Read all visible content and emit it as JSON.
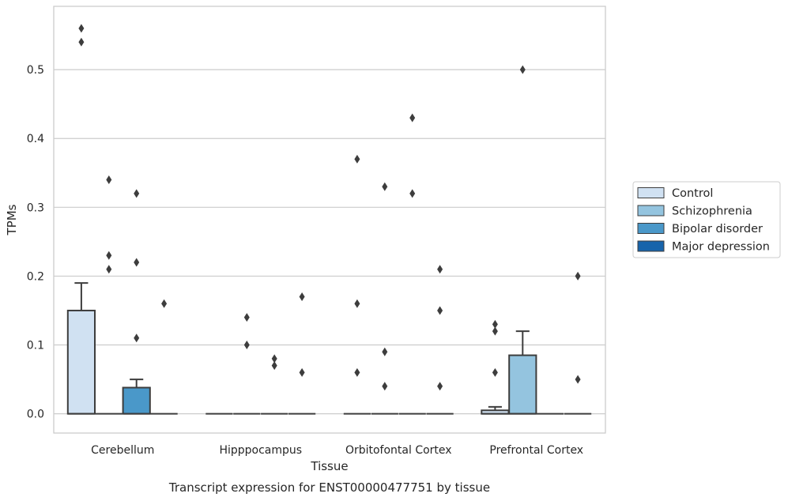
{
  "chart_data": {
    "type": "box",
    "title": "",
    "caption": "Transcript expression for ENST00000477751 by tissue",
    "xlabel": "Tissue",
    "ylabel": "TPMs",
    "ylim": [
      -0.028,
      0.592
    ],
    "yticks": [
      0.0,
      0.1,
      0.2,
      0.3,
      0.4,
      0.5
    ],
    "ytick_labels": [
      "0.0",
      "0.1",
      "0.2",
      "0.3",
      "0.4",
      "0.5"
    ],
    "grid": "horizontal",
    "legend_position": "right",
    "categories": [
      "Cerebellum",
      "Hipppocampus",
      "Orbitofontal Cortex",
      "Prefrontal Cortex"
    ],
    "series": [
      {
        "name": "Control",
        "color": "#d0e1f2",
        "boxes": [
          {
            "q1": 0.0,
            "median": 0.0,
            "q3": 0.15,
            "whisker_low": 0.0,
            "whisker_high": 0.19,
            "outliers": [
              0.54,
              0.56
            ]
          },
          {
            "q1": 0.0,
            "median": 0.0,
            "q3": 0.0,
            "whisker_low": 0.0,
            "whisker_high": 0.0,
            "outliers": []
          },
          {
            "q1": 0.0,
            "median": 0.0,
            "q3": 0.0,
            "whisker_low": 0.0,
            "whisker_high": 0.0,
            "outliers": [
              0.06,
              0.16,
              0.37
            ]
          },
          {
            "q1": 0.0,
            "median": 0.0,
            "q3": 0.005,
            "whisker_low": 0.0,
            "whisker_high": 0.01,
            "outliers": [
              0.06,
              0.12,
              0.13
            ]
          }
        ]
      },
      {
        "name": "Schizophrenia",
        "color": "#94c4df",
        "boxes": [
          {
            "q1": 0.0,
            "median": 0.0,
            "q3": 0.0,
            "whisker_low": 0.0,
            "whisker_high": 0.0,
            "outliers": [
              0.21,
              0.23,
              0.34
            ]
          },
          {
            "q1": 0.0,
            "median": 0.0,
            "q3": 0.0,
            "whisker_low": 0.0,
            "whisker_high": 0.0,
            "outliers": [
              0.1,
              0.14
            ]
          },
          {
            "q1": 0.0,
            "median": 0.0,
            "q3": 0.0,
            "whisker_low": 0.0,
            "whisker_high": 0.0,
            "outliers": [
              0.04,
              0.09,
              0.33
            ]
          },
          {
            "q1": 0.0,
            "median": 0.0,
            "q3": 0.085,
            "whisker_low": 0.0,
            "whisker_high": 0.12,
            "outliers": [
              0.5
            ]
          }
        ]
      },
      {
        "name": "Bipolar disorder",
        "color": "#4a98c9",
        "boxes": [
          {
            "q1": 0.0,
            "median": 0.0,
            "q3": 0.038,
            "whisker_low": 0.0,
            "whisker_high": 0.05,
            "outliers": [
              0.11,
              0.22,
              0.32
            ]
          },
          {
            "q1": 0.0,
            "median": 0.0,
            "q3": 0.0,
            "whisker_low": 0.0,
            "whisker_high": 0.0,
            "outliers": [
              0.07,
              0.08
            ]
          },
          {
            "q1": 0.0,
            "median": 0.0,
            "q3": 0.0,
            "whisker_low": 0.0,
            "whisker_high": 0.0,
            "outliers": [
              0.32,
              0.43
            ]
          },
          {
            "q1": 0.0,
            "median": 0.0,
            "q3": 0.0,
            "whisker_low": 0.0,
            "whisker_high": 0.0,
            "outliers": []
          }
        ]
      },
      {
        "name": "Major depression",
        "color": "#1764ab",
        "boxes": [
          {
            "q1": 0.0,
            "median": 0.0,
            "q3": 0.0,
            "whisker_low": 0.0,
            "whisker_high": 0.0,
            "outliers": [
              0.16
            ]
          },
          {
            "q1": 0.0,
            "median": 0.0,
            "q3": 0.0,
            "whisker_low": 0.0,
            "whisker_high": 0.0,
            "outliers": [
              0.06,
              0.17
            ]
          },
          {
            "q1": 0.0,
            "median": 0.0,
            "q3": 0.0,
            "whisker_low": 0.0,
            "whisker_high": 0.0,
            "outliers": [
              0.04,
              0.15,
              0.21
            ]
          },
          {
            "q1": 0.0,
            "median": 0.0,
            "q3": 0.0,
            "whisker_low": 0.0,
            "whisker_high": 0.0,
            "outliers": [
              0.05,
              0.2
            ]
          }
        ]
      }
    ]
  }
}
